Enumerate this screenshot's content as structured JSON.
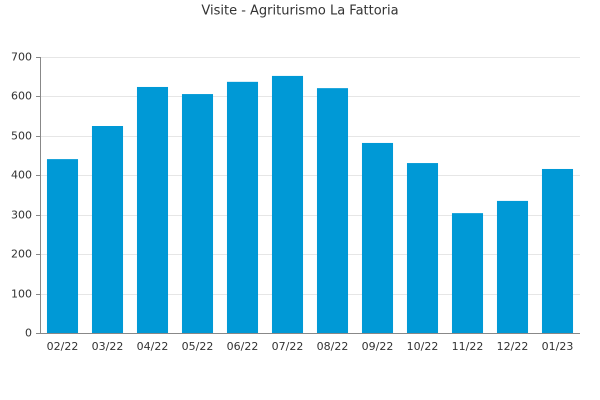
{
  "chart_data": {
    "type": "bar",
    "title": "Visite - Agriturismo La Fattoria",
    "categories": [
      "02/22",
      "03/22",
      "04/22",
      "05/22",
      "06/22",
      "07/22",
      "08/22",
      "09/22",
      "10/22",
      "11/22",
      "12/22",
      "01/23"
    ],
    "values": [
      441,
      525,
      624,
      606,
      637,
      652,
      621,
      482,
      431,
      304,
      335,
      416
    ],
    "color": "#0099d6",
    "ylim": [
      0,
      700
    ],
    "yticks": [
      0,
      100,
      200,
      300,
      400,
      500,
      600,
      700
    ],
    "grid": true
  }
}
